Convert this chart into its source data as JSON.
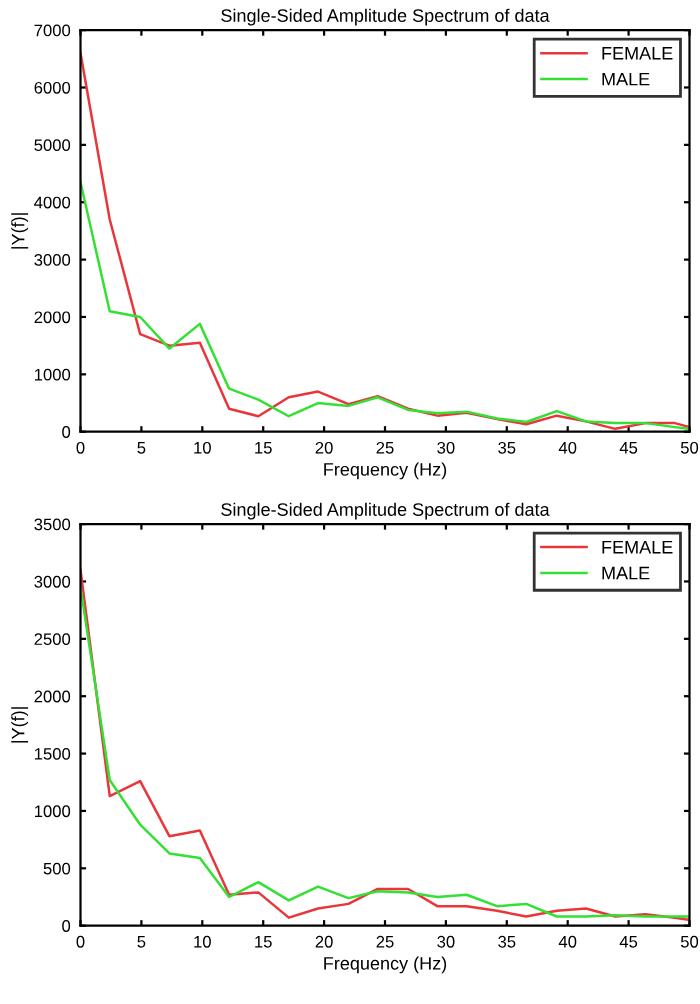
{
  "chart_data": [
    {
      "type": "line",
      "title": "Single-Sided Amplitude Spectrum of data",
      "xlabel": "Frequency (Hz)",
      "ylabel": "|Y(f)|",
      "x": [
        0,
        2.4,
        4.9,
        7.3,
        9.8,
        12.2,
        14.6,
        17.1,
        19.5,
        22.0,
        24.4,
        26.9,
        29.3,
        31.7,
        34.2,
        36.6,
        39.1,
        41.5,
        43.9,
        46.4,
        48.8,
        50
      ],
      "series": [
        {
          "name": "FEMALE",
          "color": "#e8363b",
          "values": [
            6600,
            3700,
            1700,
            1500,
            1550,
            400,
            270,
            600,
            700,
            480,
            620,
            400,
            280,
            330,
            220,
            130,
            280,
            180,
            50,
            150,
            150,
            80
          ]
        },
        {
          "name": "MALE",
          "color": "#33e033",
          "values": [
            4350,
            2100,
            2000,
            1450,
            1880,
            750,
            560,
            270,
            500,
            450,
            600,
            380,
            320,
            350,
            230,
            170,
            360,
            180,
            150,
            150,
            80,
            50
          ]
        }
      ],
      "xlim": [
        0,
        50
      ],
      "xticks": [
        0,
        5,
        10,
        15,
        20,
        25,
        30,
        35,
        40,
        45,
        50
      ],
      "ylim": [
        0,
        7000
      ],
      "yticks": [
        0,
        1000,
        2000,
        3000,
        4000,
        5000,
        6000,
        7000
      ],
      "legend": "top right",
      "grid": false
    },
    {
      "type": "line",
      "title": "Single-Sided Amplitude Spectrum of data",
      "xlabel": "Frequency (Hz)",
      "ylabel": "|Y(f)|",
      "x": [
        0,
        2.4,
        4.9,
        7.3,
        9.8,
        12.2,
        14.6,
        17.1,
        19.5,
        22.0,
        24.4,
        26.9,
        29.3,
        31.7,
        34.2,
        36.6,
        39.1,
        41.5,
        43.9,
        46.4,
        48.8,
        50
      ],
      "series": [
        {
          "name": "FEMALE",
          "color": "#e8363b",
          "values": [
            3100,
            1130,
            1260,
            780,
            830,
            270,
            290,
            70,
            150,
            190,
            320,
            320,
            170,
            170,
            130,
            80,
            130,
            150,
            80,
            100,
            70,
            50
          ]
        },
        {
          "name": "MALE",
          "color": "#33e033",
          "values": [
            2950,
            1270,
            880,
            630,
            590,
            250,
            380,
            220,
            340,
            240,
            300,
            290,
            250,
            270,
            170,
            190,
            80,
            80,
            90,
            80,
            80,
            80
          ]
        }
      ],
      "xlim": [
        0,
        50
      ],
      "xticks": [
        0,
        5,
        10,
        15,
        20,
        25,
        30,
        35,
        40,
        45,
        50
      ],
      "ylim": [
        0,
        3500
      ],
      "yticks": [
        0,
        500,
        1000,
        1500,
        2000,
        2500,
        3000,
        3500
      ],
      "legend": "top right",
      "grid": false
    }
  ]
}
